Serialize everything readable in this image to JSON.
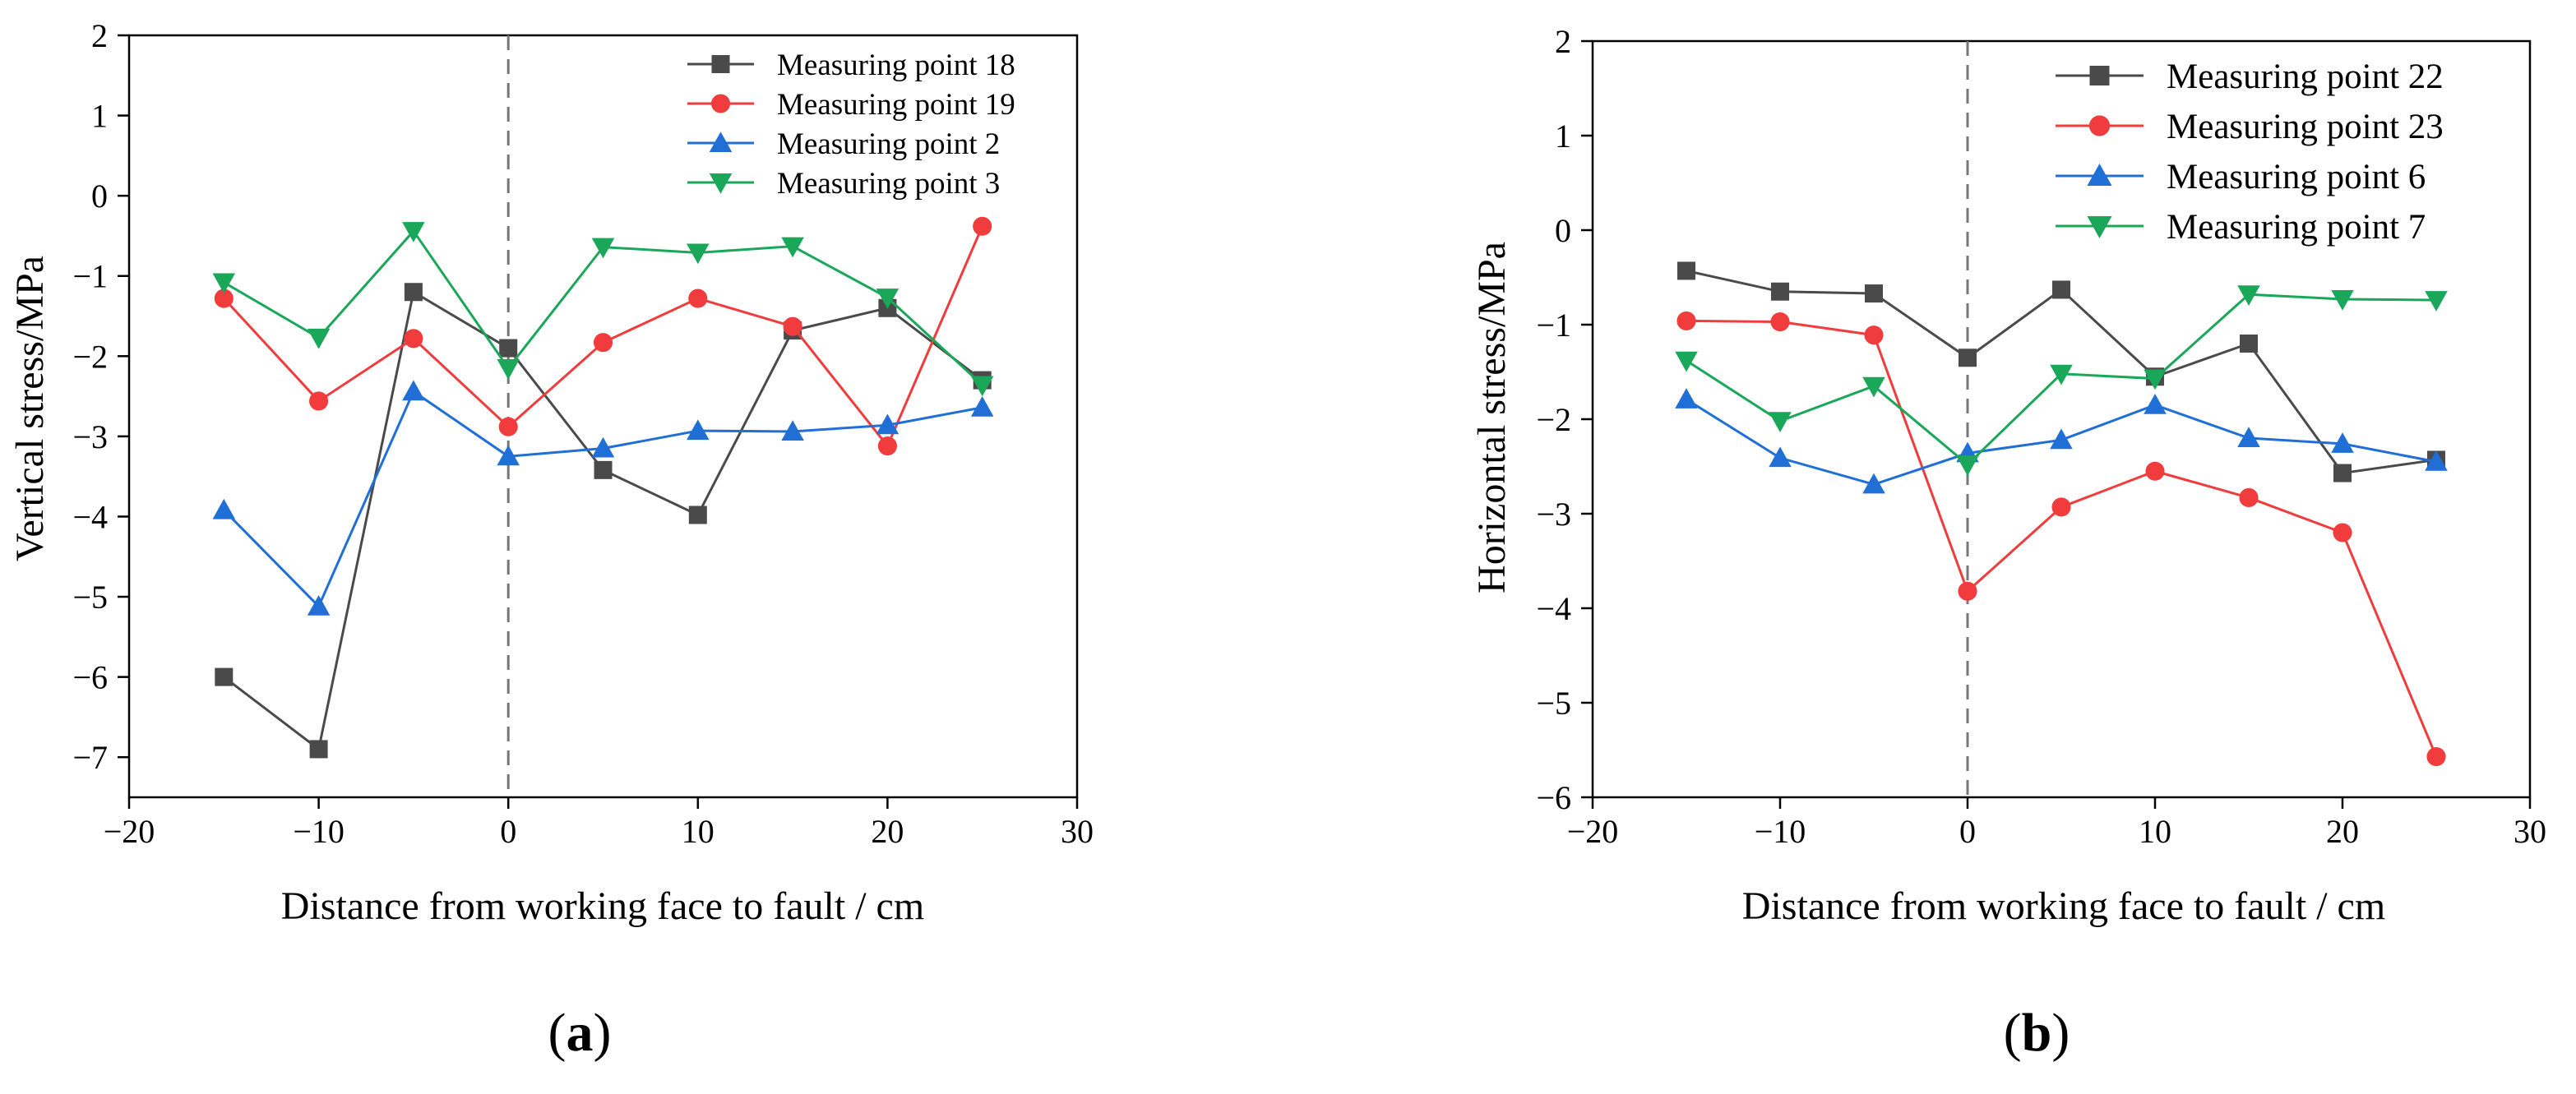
{
  "chart_data": [
    {
      "type": "line",
      "panel_label": "a",
      "xlabel": "Distance from working face to fault / cm",
      "ylabel": "Vertical stress/MPa",
      "xlim": [
        -20,
        30
      ],
      "ylim": [
        -7.5,
        2
      ],
      "xticks": [
        -20,
        -10,
        0,
        10,
        20,
        30
      ],
      "yticks": [
        2,
        1,
        0,
        -1,
        -2,
        -3,
        -4,
        -5,
        -6,
        -7
      ],
      "x_tick_labels": [
        "−20",
        "−10",
        "0",
        "10",
        "20",
        "30"
      ],
      "y_tick_labels": [
        "2",
        "1",
        "0",
        "−1",
        "−2",
        "−3",
        "−4",
        "−5",
        "−6",
        "−7"
      ],
      "vline_x": 0,
      "legend_position": "top-right",
      "x": [
        -15,
        -10,
        -5,
        0,
        5,
        10,
        15,
        20,
        25
      ],
      "series": [
        {
          "name": "Measuring point 18",
          "color": "#4a4a4a",
          "marker": "square",
          "values": [
            -6.0,
            -6.9,
            -1.2,
            -1.9,
            -3.42,
            -3.98,
            -1.68,
            -1.4,
            -2.3
          ]
        },
        {
          "name": "Measuring point 19",
          "color": "#f03c3c",
          "marker": "circle",
          "values": [
            -1.28,
            -2.56,
            -1.78,
            -2.88,
            -1.83,
            -1.28,
            -1.63,
            -3.12,
            -0.38
          ]
        },
        {
          "name": "Measuring point 2",
          "color": "#1f6fd6",
          "marker": "triangle-up",
          "values": [
            -3.92,
            -5.12,
            -2.44,
            -3.25,
            -3.15,
            -2.93,
            -2.94,
            -2.86,
            -2.64
          ]
        },
        {
          "name": "Measuring point 3",
          "color": "#1aa75a",
          "marker": "triangle-down",
          "values": [
            -1.08,
            -1.77,
            -0.44,
            -2.15,
            -0.64,
            -0.71,
            -0.63,
            -1.27,
            -2.36
          ]
        }
      ]
    },
    {
      "type": "line",
      "panel_label": "b",
      "xlabel": "Distance from working face to fault / cm",
      "ylabel": "Horizontal stress/MPa",
      "xlim": [
        -20,
        30
      ],
      "ylim": [
        -6,
        2
      ],
      "xticks": [
        -20,
        -10,
        0,
        10,
        20,
        30
      ],
      "yticks": [
        2,
        1,
        0,
        -1,
        -2,
        -3,
        -4,
        -5,
        -6
      ],
      "x_tick_labels": [
        "−20",
        "−10",
        "0",
        "10",
        "20",
        "30"
      ],
      "y_tick_labels": [
        "2",
        "1",
        "0",
        "−1",
        "−2",
        "−3",
        "−4",
        "−5",
        "−6"
      ],
      "vline_x": 0,
      "legend_position": "top-right",
      "x": [
        -15,
        -10,
        -5,
        0,
        5,
        10,
        15,
        20,
        25
      ],
      "series": [
        {
          "name": "Measuring point 22",
          "color": "#4a4a4a",
          "marker": "square",
          "values": [
            -0.43,
            -0.65,
            -0.67,
            -1.35,
            -0.63,
            -1.55,
            -1.2,
            -2.57,
            -2.43
          ]
        },
        {
          "name": "Measuring point 23",
          "color": "#f03c3c",
          "marker": "circle",
          "values": [
            -0.96,
            -0.97,
            -1.11,
            -3.82,
            -2.93,
            -2.55,
            -2.83,
            -3.2,
            -5.57
          ]
        },
        {
          "name": "Measuring point 6",
          "color": "#1f6fd6",
          "marker": "triangle-up",
          "values": [
            -1.79,
            -2.41,
            -2.69,
            -2.36,
            -2.22,
            -1.85,
            -2.2,
            -2.26,
            -2.45
          ]
        },
        {
          "name": "Measuring point 7",
          "color": "#1aa75a",
          "marker": "triangle-down",
          "values": [
            -1.38,
            -2.02,
            -1.65,
            -2.48,
            -1.52,
            -1.57,
            -0.68,
            -0.73,
            -0.74
          ]
        }
      ]
    }
  ]
}
